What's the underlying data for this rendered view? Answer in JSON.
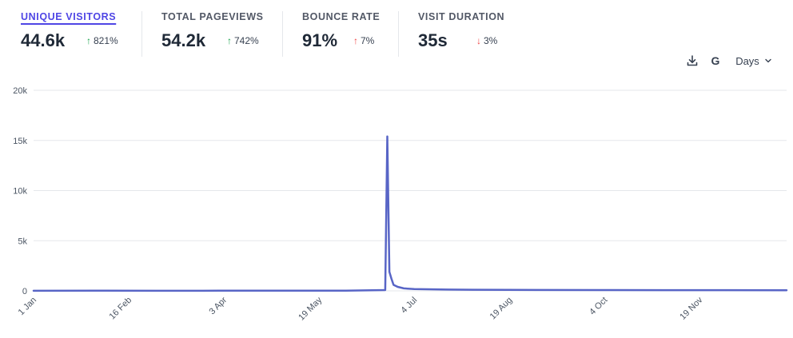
{
  "metrics": [
    {
      "label": "UNIQUE VISITORS",
      "value": "44.6k",
      "change": "821%",
      "direction": "up",
      "sentiment": "good",
      "active": true
    },
    {
      "label": "TOTAL PAGEVIEWS",
      "value": "54.2k",
      "change": "742%",
      "direction": "up",
      "sentiment": "good",
      "active": false
    },
    {
      "label": "BOUNCE RATE",
      "value": "91%",
      "change": "7%",
      "direction": "up",
      "sentiment": "bad",
      "active": false
    },
    {
      "label": "VISIT DURATION",
      "value": "35s",
      "change": "3%",
      "direction": "down",
      "sentiment": "bad",
      "active": false
    }
  ],
  "toolbar": {
    "download_icon": "download-icon",
    "g_label": "G",
    "interval_label": "Days",
    "interval_icon": "chevron-down-icon"
  },
  "colors": {
    "line": "#5865c6",
    "accent": "#4f46e5",
    "up_good": "#16a34a",
    "bad": "#ef4444",
    "grid": "#e5e7eb"
  },
  "chart_data": {
    "type": "line",
    "title": "",
    "xlabel": "",
    "ylabel": "",
    "ylim": [
      0,
      20000
    ],
    "yticks": [
      0,
      5000,
      10000,
      15000,
      20000
    ],
    "ytick_labels": [
      "0",
      "5k",
      "10k",
      "15k",
      "20k"
    ],
    "x_range": [
      "1 Jan",
      "31 Dec"
    ],
    "xtick_labels": [
      "1 Jan",
      "16 Feb",
      "3 Apr",
      "19 May",
      "4 Jul",
      "19 Aug",
      "4 Oct",
      "19 Nov"
    ],
    "grid": true,
    "series": [
      {
        "name": "",
        "points": [
          [
            "1 Jan",
            10
          ],
          [
            "1 Feb",
            12
          ],
          [
            "1 Mar",
            10
          ],
          [
            "1 Apr",
            12
          ],
          [
            "1 May",
            12
          ],
          [
            "1 Jun",
            15
          ],
          [
            "20 Jun",
            80
          ],
          [
            "21 Jun",
            15400
          ],
          [
            "22 Jun",
            1900
          ],
          [
            "23 Jun",
            1200
          ],
          [
            "24 Jun",
            600
          ],
          [
            "26 Jun",
            400
          ],
          [
            "29 Jun",
            250
          ],
          [
            "4 Jul",
            180
          ],
          [
            "20 Jul",
            130
          ],
          [
            "1 Aug",
            110
          ],
          [
            "1 Sep",
            90
          ],
          [
            "1 Oct",
            80
          ],
          [
            "1 Nov",
            75
          ],
          [
            "1 Dec",
            70
          ],
          [
            "31 Dec",
            65
          ]
        ]
      }
    ]
  }
}
